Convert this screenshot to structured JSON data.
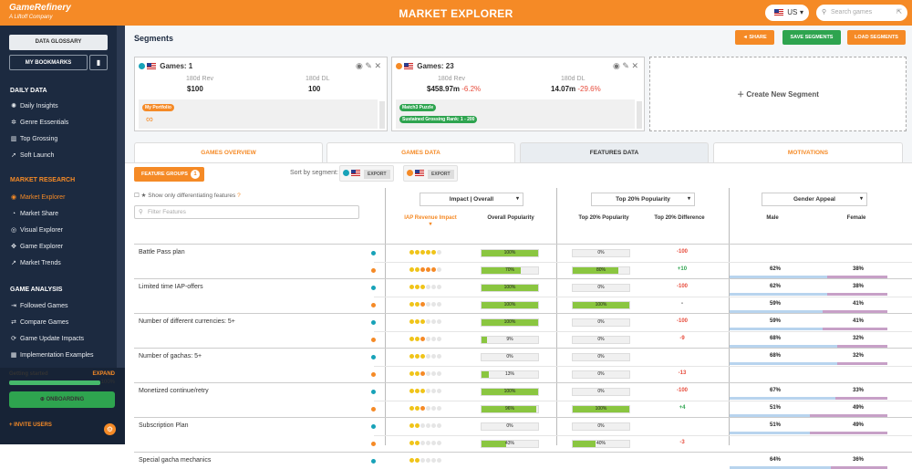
{
  "header": {
    "logo_main": "GameRefinery",
    "logo_sub": "A Liftoff Company",
    "title": "MARKET EXPLORER",
    "country": "US",
    "search_placeholder": "Search games"
  },
  "sidebar": {
    "glossary": "DATA GLOSSARY",
    "bookmarks": "MY BOOKMARKS",
    "sections": [
      {
        "title": "DAILY DATA",
        "items": [
          "Daily Insights",
          "Genre Essentials",
          "Top Grossing",
          "Soft Launch"
        ]
      },
      {
        "title": "MARKET RESEARCH",
        "items": [
          "Market Explorer",
          "Market Share",
          "Visual Explorer",
          "Game Explorer",
          "Market Trends"
        ]
      },
      {
        "title": "GAME ANALYSIS",
        "items": [
          "Followed Games",
          "Compare Games",
          "Game Update Impacts",
          "Implementation Examples"
        ]
      }
    ],
    "getting_started": "Getting started",
    "expand": "EXPAND",
    "progress": "100%",
    "progress_value": 1.0,
    "onboarding": "ONBOARDING",
    "invite": "+ INVITE USERS"
  },
  "segments": {
    "title": "Segments",
    "share": "SHARE",
    "save": "SAVE SEGMENTS",
    "load": "LOAD SEGMENTS",
    "cards": [
      {
        "title": "Games: 1",
        "rev_label": "180d Rev",
        "dl_label": "180d DL",
        "rev": "$100",
        "dl": "100",
        "rev_change": "",
        "dl_change": "",
        "tags": [
          "My Portfolio"
        ]
      },
      {
        "title": "Games: 23",
        "rev_label": "180d Rev",
        "dl_label": "180d DL",
        "rev": "$458.97m",
        "dl": "14.07m",
        "rev_change": "-6.2%",
        "dl_change": "-29.6%",
        "tags": [
          "Match3 Puzzle",
          "Sustained Grossing Rank: 1 - 200"
        ]
      }
    ],
    "create": "Create New Segment"
  },
  "tabs": [
    "GAMES OVERVIEW",
    "GAMES DATA",
    "FEATURES DATA",
    "MOTIVATIONS"
  ],
  "features": {
    "groups_btn": "FEATURE GROUPS",
    "groups_count": "1",
    "sort_label": "Sort by segment:",
    "export": "EXPORT",
    "show_diff": "Show only differentiating features",
    "filter_placeholder": "Filter Features",
    "dd_impact": "Impact | Overall",
    "dd_pop": "Top 20% Popularity",
    "dd_gender": "Gender Appeal",
    "col_iap": "IAP Revenue Impact",
    "col_overall": "Overall Popularity",
    "col_top20": "Top 20% Popularity",
    "col_top20diff": "Top 20% Difference",
    "col_male": "Male",
    "col_female": "Female"
  },
  "rows": [
    {
      "name": "Battle Pass plan",
      "s": [
        {
          "stars": 5,
          "overall": "100%",
          "overall_v": 100,
          "top20": "0%",
          "top20_v": 0,
          "diff": "-100",
          "male": "",
          "female": ""
        },
        {
          "stars": 5,
          "overall": "70%",
          "overall_v": 70,
          "top20": "80%",
          "top20_v": 80,
          "diff": "+10",
          "male": "62%",
          "female": "38%"
        }
      ]
    },
    {
      "name": "Limited time IAP-offers",
      "s": [
        {
          "stars": 3,
          "overall": "100%",
          "overall_v": 100,
          "top20": "0%",
          "top20_v": 0,
          "diff": "-100",
          "male": "62%",
          "female": "38%"
        },
        {
          "stars": 3,
          "overall": "100%",
          "overall_v": 100,
          "top20": "100%",
          "top20_v": 100,
          "diff": "-",
          "male": "59%",
          "female": "41%"
        }
      ]
    },
    {
      "name": "Number of different currencies: 5+",
      "s": [
        {
          "stars": 3,
          "overall": "100%",
          "overall_v": 100,
          "top20": "0%",
          "top20_v": 0,
          "diff": "-100",
          "male": "59%",
          "female": "41%"
        },
        {
          "stars": 3,
          "overall": "9%",
          "overall_v": 9,
          "top20": "0%",
          "top20_v": 0,
          "diff": "-9",
          "male": "68%",
          "female": "32%"
        }
      ]
    },
    {
      "name": "Number of gachas: 5+",
      "s": [
        {
          "stars": 3,
          "overall": "0%",
          "overall_v": 0,
          "top20": "0%",
          "top20_v": 0,
          "diff": "",
          "male": "68%",
          "female": "32%"
        },
        {
          "stars": 3,
          "overall": "13%",
          "overall_v": 13,
          "top20": "0%",
          "top20_v": 0,
          "diff": "-13",
          "male": "",
          "female": ""
        }
      ]
    },
    {
      "name": "Monetized continue/retry",
      "s": [
        {
          "stars": 3,
          "overall": "100%",
          "overall_v": 100,
          "top20": "0%",
          "top20_v": 0,
          "diff": "-100",
          "male": "67%",
          "female": "33%"
        },
        {
          "stars": 3,
          "overall": "96%",
          "overall_v": 96,
          "top20": "100%",
          "top20_v": 100,
          "diff": "+4",
          "male": "51%",
          "female": "49%"
        }
      ]
    },
    {
      "name": "Subscription Plan",
      "s": [
        {
          "stars": 2,
          "overall": "0%",
          "overall_v": 0,
          "top20": "0%",
          "top20_v": 0,
          "diff": "",
          "male": "51%",
          "female": "49%"
        },
        {
          "stars": 2,
          "overall": "43%",
          "overall_v": 43,
          "top20": "40%",
          "top20_v": 40,
          "diff": "-3",
          "male": "",
          "female": ""
        }
      ]
    },
    {
      "name": "Special gacha mechanics",
      "s": [
        {
          "stars": 2,
          "overall": "",
          "overall_v": 0,
          "top20": "",
          "top20_v": 0,
          "diff": "",
          "male": "64%",
          "female": "36%"
        }
      ]
    }
  ]
}
